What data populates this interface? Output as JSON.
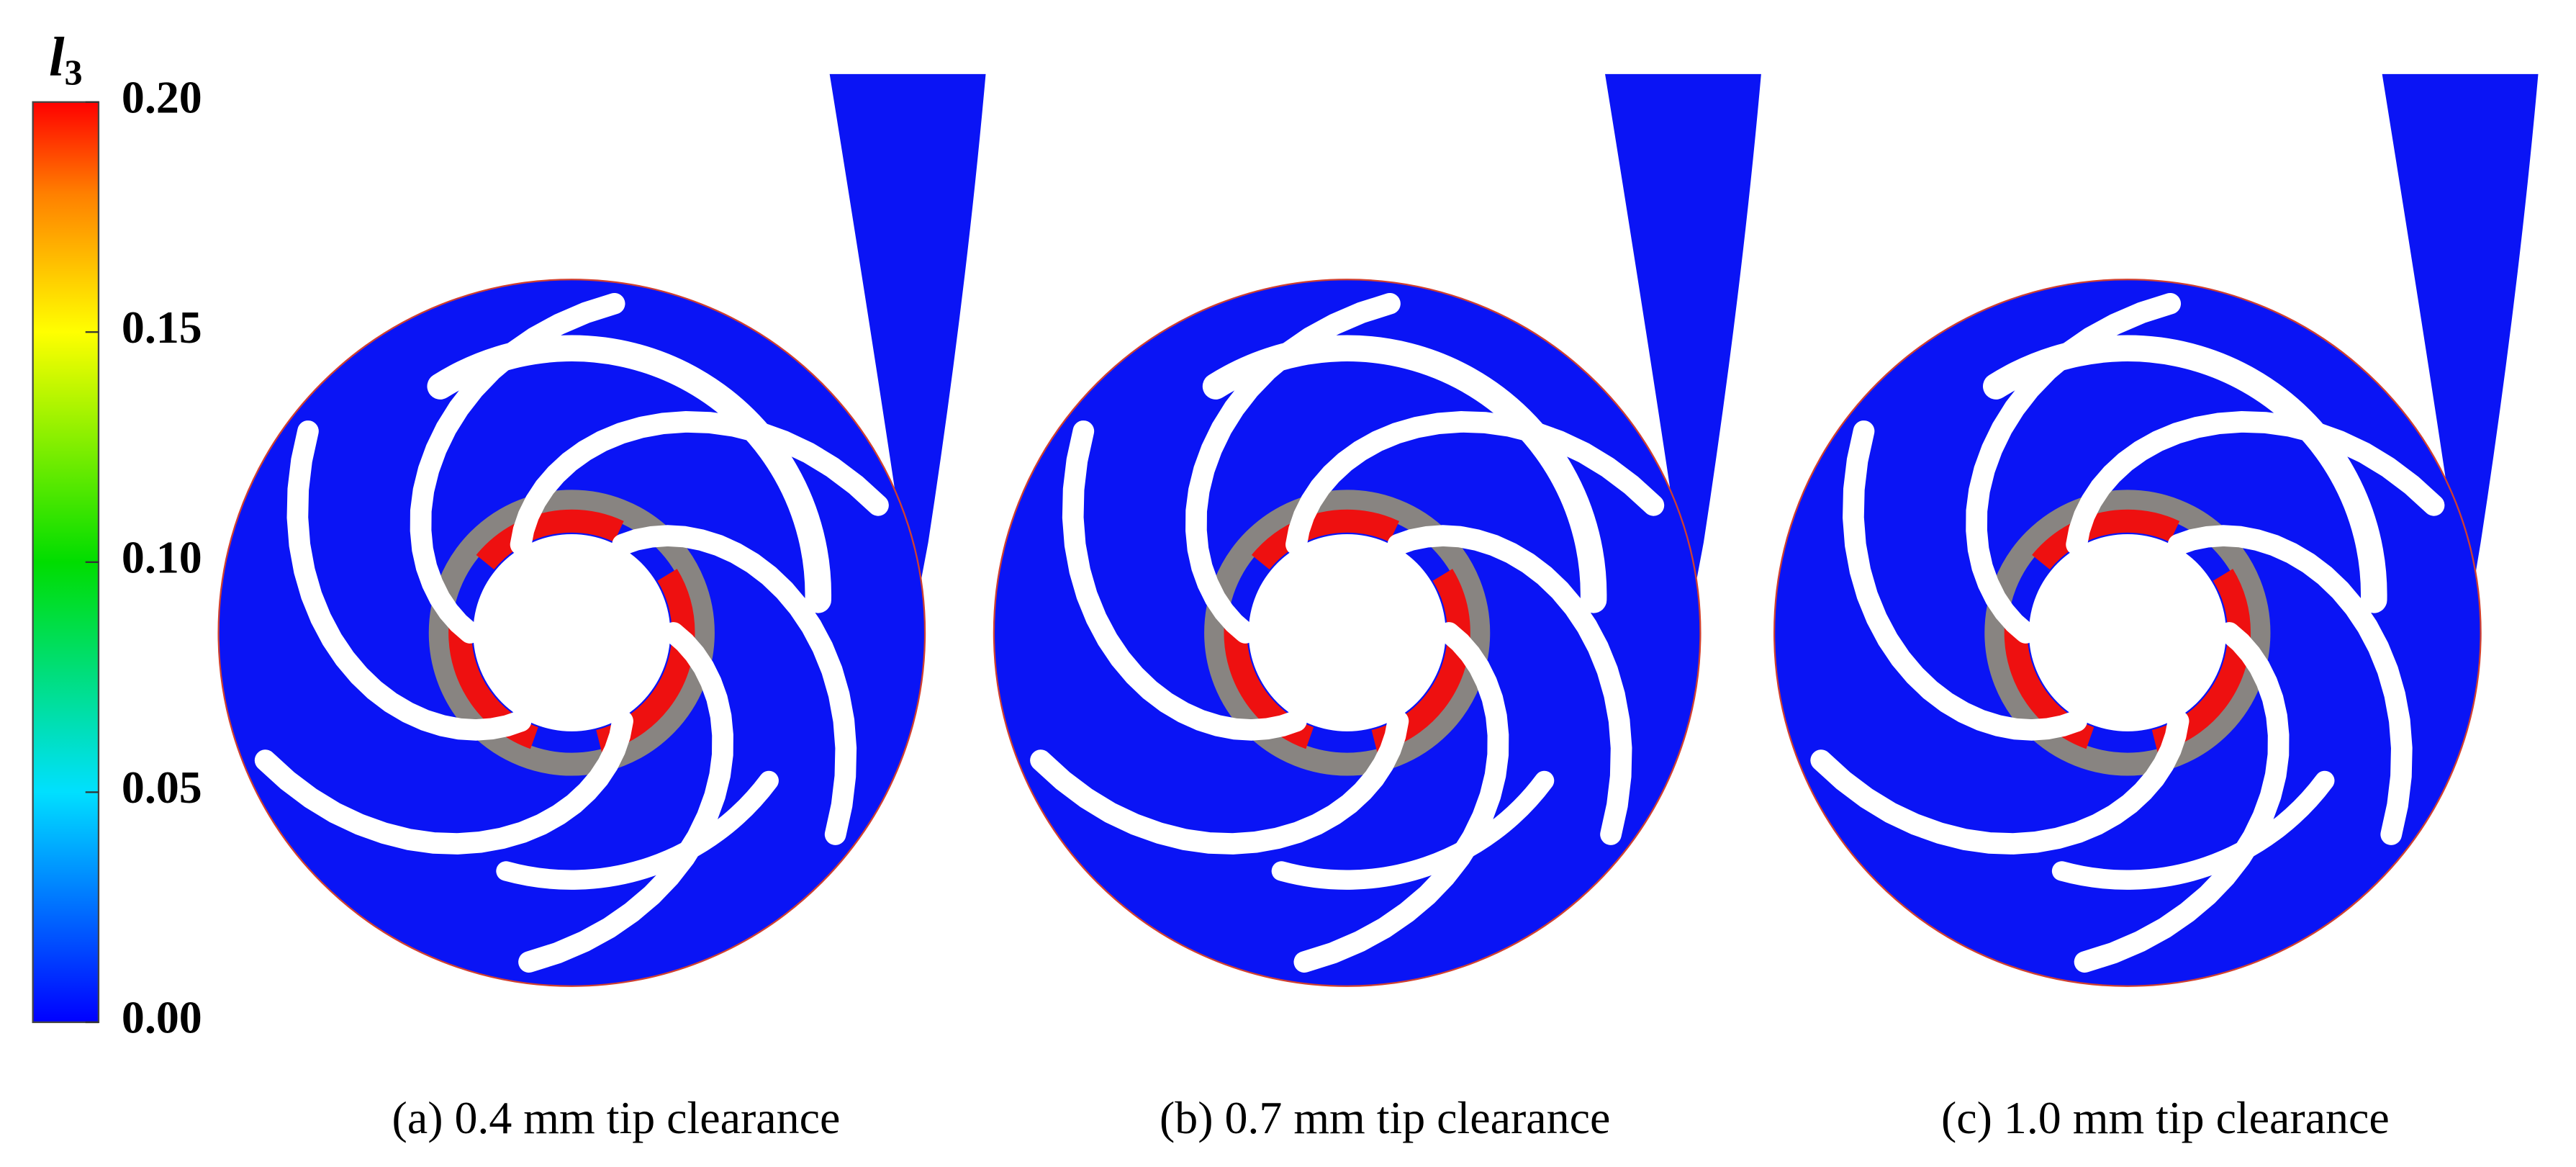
{
  "colorbar": {
    "title": "l",
    "subscript": "3",
    "lim": [
      0,
      0.2
    ],
    "ticks": [
      {
        "value": 0,
        "label": "0.00"
      },
      {
        "value": 0.05,
        "label": "0.05"
      },
      {
        "value": 0.1,
        "label": "0.10"
      },
      {
        "value": 0.15,
        "label": "0.15"
      },
      {
        "value": 0.2,
        "label": "0.20"
      }
    ]
  },
  "panels": [
    {
      "caption": "(a) 0.4 mm tip clearance"
    },
    {
      "caption": "(b) 0.7 mm tip clearance"
    },
    {
      "caption": "(c) 1.0 mm tip clearance"
    }
  ]
}
